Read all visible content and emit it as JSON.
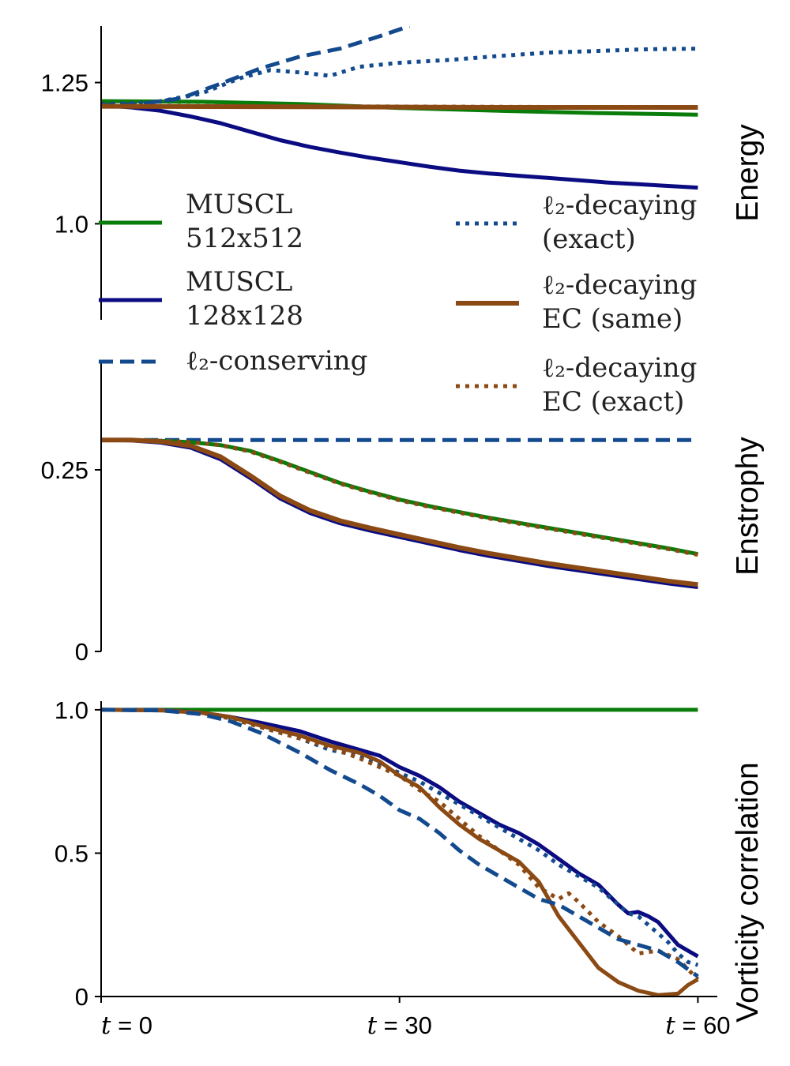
{
  "colors": {
    "green": "#0a7c0a",
    "navy": "#0b0b82",
    "blue": "#134a8e",
    "brown": "#8b4a14"
  },
  "chart_data": [
    {
      "type": "line",
      "ylabel": "Energy",
      "ylim": [
        0.83,
        1.35
      ],
      "yticks": [
        {
          "value": 1.0,
          "label": "1.0"
        },
        {
          "value": 1.25,
          "label": "1.25"
        }
      ],
      "xlim": [
        0,
        61
      ],
      "series": [
        {
          "key": "green",
          "color": "#0a7c0a",
          "dash": "solid",
          "width": 5,
          "x": [
            0,
            10,
            20,
            30,
            40,
            50,
            60
          ],
          "y": [
            1.217,
            1.216,
            1.212,
            1.205,
            1.2,
            1.196,
            1.193
          ]
        },
        {
          "key": "navy",
          "color": "#0b0b82",
          "dash": "solid",
          "width": 5,
          "x": [
            0,
            3,
            6,
            9,
            12,
            15,
            18,
            21,
            24,
            27,
            30,
            33,
            36,
            39,
            42,
            45,
            48,
            51,
            54,
            57,
            60
          ],
          "y": [
            1.21,
            1.206,
            1.2,
            1.19,
            1.178,
            1.163,
            1.148,
            1.136,
            1.126,
            1.117,
            1.109,
            1.101,
            1.094,
            1.089,
            1.085,
            1.081,
            1.077,
            1.073,
            1.07,
            1.067,
            1.064
          ]
        },
        {
          "key": "blue-dashed",
          "color": "#134a8e",
          "dash": "dashed",
          "width": 5,
          "x": [
            0,
            4,
            8,
            12,
            16,
            20,
            24,
            28,
            31
          ],
          "y": [
            1.21,
            1.212,
            1.222,
            1.248,
            1.275,
            1.296,
            1.31,
            1.332,
            1.35
          ]
        },
        {
          "key": "blue-dotted",
          "color": "#134a8e",
          "dash": "dotted",
          "width": 5,
          "x": [
            0,
            5,
            10,
            14,
            17,
            20,
            23,
            26,
            30,
            35,
            40,
            45,
            50,
            55,
            60
          ],
          "y": [
            1.212,
            1.214,
            1.23,
            1.258,
            1.272,
            1.268,
            1.262,
            1.278,
            1.285,
            1.29,
            1.297,
            1.303,
            1.306,
            1.309,
            1.31
          ]
        },
        {
          "key": "brown-dotted",
          "color": "#8b4a14",
          "dash": "dotted",
          "width": 5,
          "x": [
            0,
            20,
            40,
            60
          ],
          "y": [
            1.209,
            1.208,
            1.207,
            1.206
          ]
        },
        {
          "key": "brown-solid",
          "color": "#8b4a14",
          "dash": "solid",
          "width": 6,
          "x": [
            0,
            20,
            40,
            60
          ],
          "y": [
            1.208,
            1.207,
            1.206,
            1.206
          ]
        }
      ]
    },
    {
      "type": "line",
      "ylabel": "Enstrophy",
      "ylim": [
        0,
        0.4
      ],
      "yticks": [
        {
          "value": 0,
          "label": "0"
        },
        {
          "value": 0.25,
          "label": "0.25"
        }
      ],
      "xlim": [
        0,
        61
      ],
      "series": [
        {
          "key": "blue-dashed",
          "color": "#134a8e",
          "dash": "dashed",
          "width": 5,
          "x": [
            0,
            60
          ],
          "y": [
            0.291,
            0.291
          ]
        },
        {
          "key": "green",
          "color": "#0a7c0a",
          "dash": "solid",
          "width": 5,
          "x": [
            0,
            3,
            6,
            9,
            12,
            15,
            18,
            21,
            24,
            27,
            30,
            33,
            36,
            39,
            42,
            45,
            48,
            51,
            54,
            57,
            60
          ],
          "y": [
            0.291,
            0.291,
            0.29,
            0.288,
            0.284,
            0.276,
            0.262,
            0.247,
            0.232,
            0.22,
            0.209,
            0.2,
            0.192,
            0.184,
            0.177,
            0.17,
            0.163,
            0.156,
            0.149,
            0.142,
            0.134
          ]
        },
        {
          "key": "brown-dotted",
          "color": "#8b4a14",
          "dash": "dotted",
          "width": 5,
          "x": [
            0,
            3,
            6,
            9,
            12,
            15,
            18,
            21,
            24,
            27,
            30,
            33,
            36,
            39,
            42,
            45,
            48,
            51,
            54,
            57,
            60
          ],
          "y": [
            0.291,
            0.291,
            0.29,
            0.288,
            0.284,
            0.275,
            0.261,
            0.246,
            0.231,
            0.219,
            0.208,
            0.199,
            0.191,
            0.183,
            0.176,
            0.169,
            0.162,
            0.155,
            0.148,
            0.141,
            0.133
          ]
        },
        {
          "key": "navy",
          "color": "#0b0b82",
          "dash": "solid",
          "width": 4,
          "x": [
            0,
            3,
            6,
            9,
            12,
            15,
            18,
            21,
            24,
            27,
            30,
            33,
            36,
            39,
            42,
            45,
            48,
            51,
            54,
            57,
            60
          ],
          "y": [
            0.291,
            0.29,
            0.287,
            0.28,
            0.264,
            0.238,
            0.21,
            0.19,
            0.176,
            0.166,
            0.157,
            0.148,
            0.139,
            0.131,
            0.124,
            0.117,
            0.111,
            0.105,
            0.099,
            0.093,
            0.088
          ]
        },
        {
          "key": "brown-solid",
          "color": "#8b4a14",
          "dash": "solid",
          "width": 6,
          "x": [
            0,
            3,
            6,
            9,
            12,
            15,
            18,
            21,
            24,
            27,
            30,
            33,
            36,
            39,
            42,
            45,
            48,
            51,
            54,
            57,
            60
          ],
          "y": [
            0.291,
            0.291,
            0.289,
            0.283,
            0.268,
            0.242,
            0.214,
            0.194,
            0.18,
            0.17,
            0.161,
            0.152,
            0.143,
            0.135,
            0.128,
            0.121,
            0.115,
            0.109,
            0.103,
            0.097,
            0.092
          ]
        }
      ]
    },
    {
      "type": "line",
      "ylabel": "Vorticity correlation",
      "ylim": [
        0,
        1.03
      ],
      "yticks": [
        {
          "value": 0,
          "label": "0"
        },
        {
          "value": 0.5,
          "label": "0.5"
        },
        {
          "value": 1.0,
          "label": "1.0"
        }
      ],
      "xlim": [
        0,
        61
      ],
      "xticks": [
        {
          "value": 0,
          "label": "t = 0"
        },
        {
          "value": 30,
          "label": "t = 30"
        },
        {
          "value": 60,
          "label": "t = 60"
        }
      ],
      "series": [
        {
          "key": "green",
          "color": "#0a7c0a",
          "dash": "solid",
          "width": 5,
          "x": [
            0,
            60
          ],
          "y": [
            1.0,
            1.0
          ]
        },
        {
          "key": "navy",
          "color": "#0b0b82",
          "dash": "solid",
          "width": 5,
          "x": [
            0,
            6,
            10,
            13,
            16,
            20,
            23,
            26,
            28,
            30,
            32,
            34,
            36,
            38,
            40,
            42,
            44,
            46,
            48,
            50,
            52,
            53,
            54,
            55,
            56,
            57,
            58,
            59,
            60
          ],
          "y": [
            1.0,
            0.999,
            0.99,
            0.975,
            0.955,
            0.925,
            0.89,
            0.86,
            0.84,
            0.8,
            0.77,
            0.73,
            0.68,
            0.64,
            0.6,
            0.57,
            0.53,
            0.48,
            0.43,
            0.39,
            0.32,
            0.29,
            0.295,
            0.28,
            0.26,
            0.22,
            0.18,
            0.16,
            0.14
          ]
        },
        {
          "key": "blue-dotted",
          "color": "#134a8e",
          "dash": "dotted",
          "width": 5,
          "x": [
            0,
            6,
            10,
            13,
            16,
            20,
            23,
            26,
            28,
            30,
            32,
            34,
            36,
            38,
            40,
            42,
            44,
            46,
            48,
            50,
            52,
            53,
            54,
            55,
            56,
            57,
            58,
            59,
            60
          ],
          "y": [
            1.0,
            0.999,
            0.99,
            0.97,
            0.94,
            0.9,
            0.86,
            0.84,
            0.81,
            0.78,
            0.75,
            0.71,
            0.67,
            0.63,
            0.59,
            0.55,
            0.51,
            0.46,
            0.42,
            0.38,
            0.32,
            0.29,
            0.28,
            0.25,
            0.22,
            0.19,
            0.15,
            0.12,
            0.11
          ]
        },
        {
          "key": "brown-solid",
          "color": "#8b4a14",
          "dash": "solid",
          "width": 5,
          "x": [
            0,
            6,
            10,
            13,
            16,
            20,
            23,
            26,
            28,
            30,
            32,
            34,
            36,
            38,
            40,
            42,
            44,
            45,
            46,
            48,
            50,
            52,
            54,
            56,
            58,
            59,
            60
          ],
          "y": [
            1.0,
            0.998,
            0.99,
            0.975,
            0.945,
            0.91,
            0.875,
            0.85,
            0.82,
            0.77,
            0.73,
            0.66,
            0.6,
            0.55,
            0.51,
            0.47,
            0.4,
            0.34,
            0.28,
            0.19,
            0.1,
            0.05,
            0.02,
            0.005,
            0.01,
            0.04,
            0.06
          ]
        },
        {
          "key": "brown-dotted",
          "color": "#8b4a14",
          "dash": "dotted",
          "width": 5,
          "x": [
            0,
            6,
            10,
            13,
            16,
            20,
            23,
            26,
            28,
            30,
            32,
            34,
            36,
            38,
            40,
            42,
            44,
            46,
            47,
            48,
            50,
            52,
            54,
            56,
            58,
            60
          ],
          "y": [
            1.0,
            0.998,
            0.99,
            0.97,
            0.94,
            0.9,
            0.87,
            0.83,
            0.8,
            0.77,
            0.72,
            0.68,
            0.62,
            0.56,
            0.51,
            0.46,
            0.38,
            0.34,
            0.36,
            0.33,
            0.26,
            0.21,
            0.15,
            0.16,
            0.13,
            0.06
          ]
        },
        {
          "key": "blue-dashed",
          "color": "#134a8e",
          "dash": "dashed",
          "width": 5,
          "x": [
            0,
            6,
            10,
            13,
            16,
            20,
            23,
            26,
            28,
            30,
            32,
            34,
            36,
            38,
            40,
            42,
            44,
            46,
            48,
            50,
            52,
            54,
            56,
            58,
            60
          ],
          "y": [
            1.0,
            0.998,
            0.985,
            0.96,
            0.92,
            0.85,
            0.79,
            0.74,
            0.7,
            0.65,
            0.62,
            0.57,
            0.51,
            0.46,
            0.42,
            0.38,
            0.34,
            0.32,
            0.28,
            0.24,
            0.2,
            0.18,
            0.16,
            0.12,
            0.07
          ]
        }
      ]
    }
  ],
  "legend": {
    "placement": "upper-center",
    "entries": [
      {
        "key": "green",
        "lines": [
          "MUSCL",
          "512x512"
        ]
      },
      {
        "key": "navy",
        "lines": [
          "MUSCL",
          "128x128"
        ]
      },
      {
        "key": "blue-dashed",
        "lines": [
          "ℓ₂-conserving"
        ]
      },
      {
        "key": "blue-dotted",
        "lines": [
          "ℓ₂-decaying",
          "(exact)"
        ]
      },
      {
        "key": "brown-solid",
        "lines": [
          "ℓ₂-decaying",
          "EC (same)"
        ]
      },
      {
        "key": "brown-dotted",
        "lines": [
          "ℓ₂-decaying",
          "EC (exact)"
        ]
      }
    ]
  }
}
